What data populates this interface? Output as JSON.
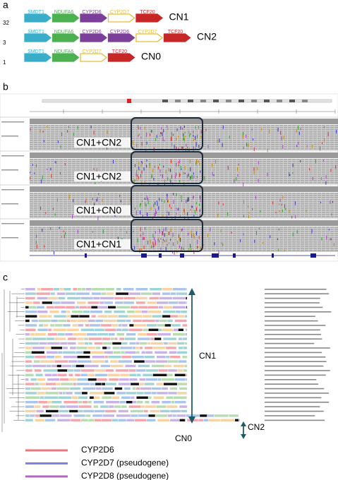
{
  "gene_styles": {
    "SMDT1": {
      "fill": "#3aaec9",
      "text": "#ffffff",
      "stroke": "#3aaec9"
    },
    "NDUFA6": {
      "fill": "#4caf50",
      "text": "#ffffff",
      "stroke": "#4caf50"
    },
    "CYP2D6": {
      "fill": "#7b3f99",
      "text": "#ffffff",
      "stroke": "#7b3f99"
    },
    "CYP2D7": {
      "fill": "#ffffff",
      "text": "#c9a227",
      "stroke": "#e2bd3a"
    },
    "TCF20": {
      "fill": "#c62828",
      "text": "#ffffff",
      "stroke": "#c62828"
    }
  },
  "panel_a": {
    "label": "a",
    "rows": [
      {
        "count": "32",
        "genes": [
          "SMDT1",
          "NDUFA6",
          "CYP2D6",
          "CYP2D7",
          "TCF20"
        ],
        "copy_number": "CN1"
      },
      {
        "count": "3",
        "genes": [
          "SMDT1",
          "NDUFA6",
          "CYP2D6",
          "CYP2D6",
          "CYP2D7",
          "TCF20"
        ],
        "copy_number": "CN2"
      },
      {
        "count": "1",
        "genes": [
          "SMDT1",
          "NDUFA6",
          "CYP2D7",
          "TCF20"
        ],
        "copy_number": "CN0"
      }
    ]
  },
  "panel_b": {
    "label": "b",
    "tracks": [
      "CN1+CN2",
      "CN1+CN2",
      "CN1+CN0",
      "CN1+CN1"
    ]
  },
  "panel_c": {
    "label": "c",
    "annotations": {
      "cn1": "CN1",
      "cn2": "CN2",
      "cn0": "CN0"
    },
    "legend": [
      {
        "name": "CYP2D6",
        "color": "#e8777f"
      },
      {
        "name": "CYP2D7 (pseudogene)",
        "color": "#7f83e3"
      },
      {
        "name": "CYP2D8 (pseudogene)",
        "color": "#b267c4"
      }
    ]
  }
}
